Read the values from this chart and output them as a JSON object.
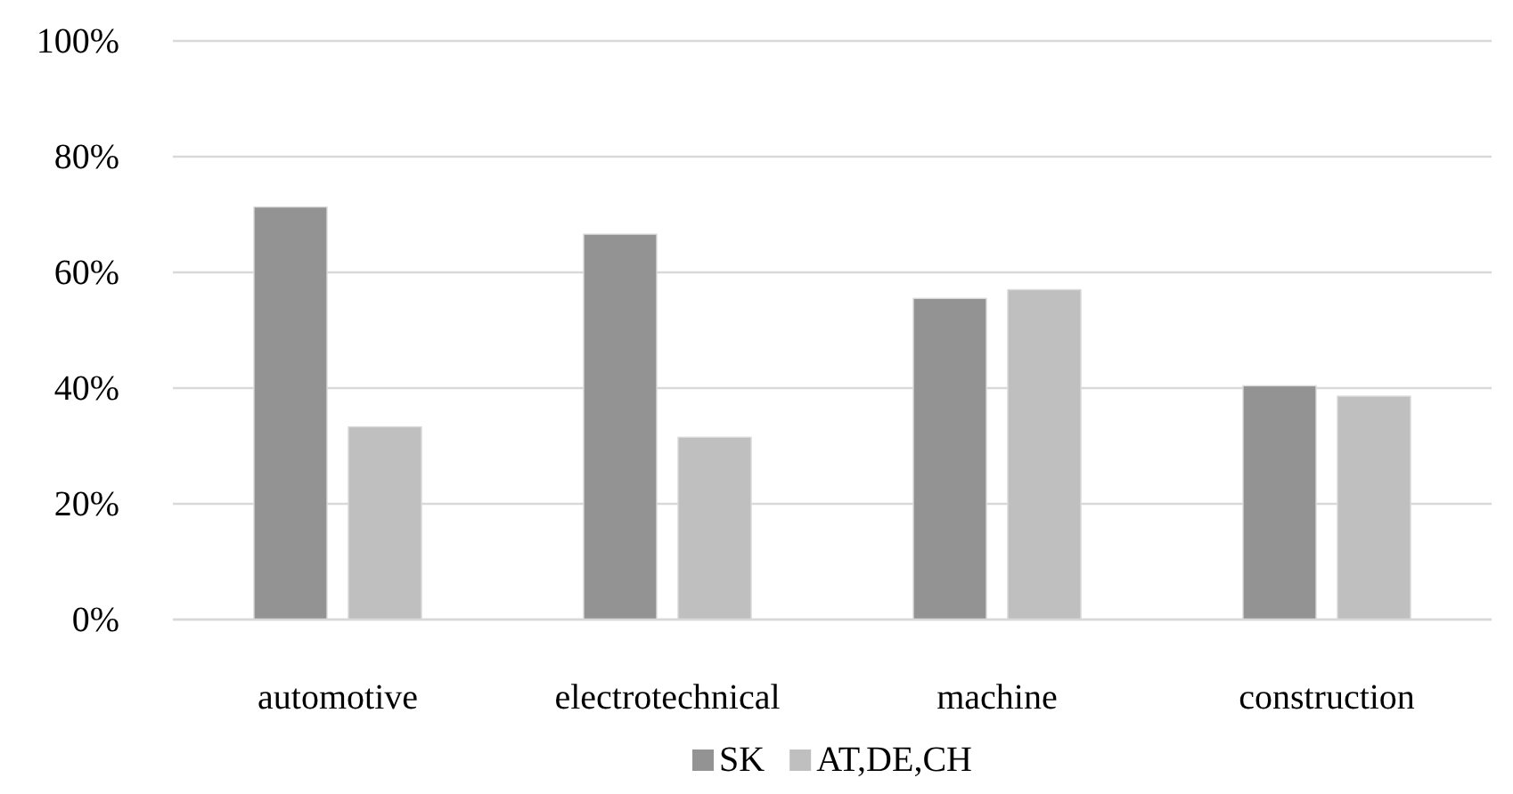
{
  "chart_data": {
    "type": "bar",
    "categories": [
      "automotive",
      "electrotechnical",
      "machine",
      "construction"
    ],
    "series": [
      {
        "name": "SK",
        "color": "#939393",
        "values": [
          71.3,
          66.6,
          55.5,
          40.4
        ]
      },
      {
        "name": "AT,DE,CH",
        "color": "#bfbfbf",
        "values": [
          33.3,
          31.5,
          57.0,
          38.6
        ]
      }
    ],
    "ylim": [
      0,
      100
    ],
    "yticks": [
      {
        "value": 0,
        "label": "0%"
      },
      {
        "value": 20,
        "label": "20%"
      },
      {
        "value": 40,
        "label": "40%"
      },
      {
        "value": 60,
        "label": "60%"
      },
      {
        "value": 80,
        "label": "80%"
      },
      {
        "value": 100,
        "label": "100%"
      }
    ],
    "grid": "y",
    "legend": "bottom"
  }
}
